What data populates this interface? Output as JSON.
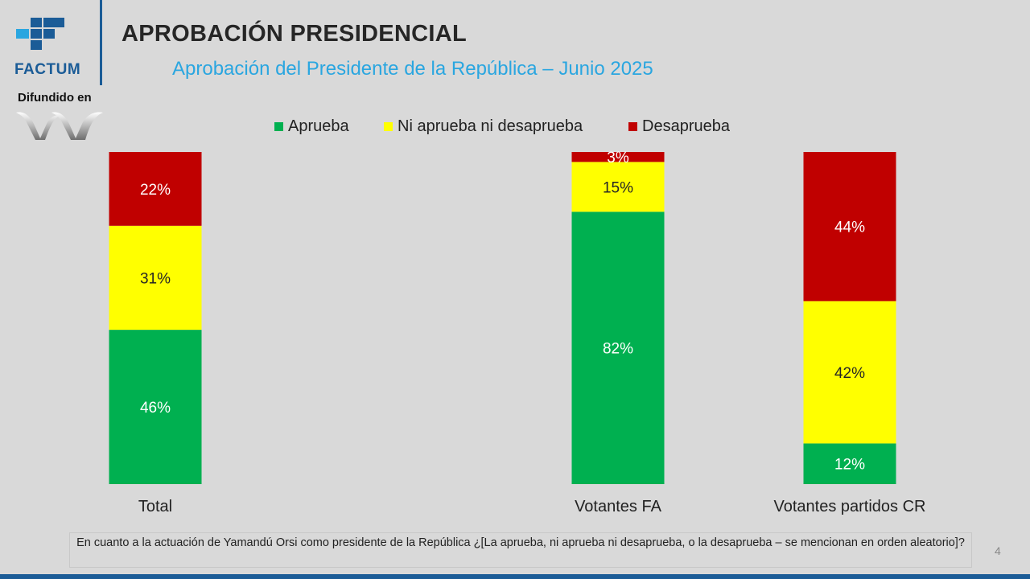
{
  "brand": {
    "name": "FACTUM",
    "difundido": "Difundido en",
    "brand_color": "#1b5c97"
  },
  "header": {
    "title": "APROBACIÓN PRESIDENCIAL",
    "subtitle": "Aprobación del Presidente de la República – Junio 2025"
  },
  "chart_data": {
    "type": "bar",
    "stacked": true,
    "categories": [
      "Total",
      "Votantes FA",
      "Votantes partidos CR"
    ],
    "series": [
      {
        "name": "Aprueba",
        "color": "#00b050",
        "values": [
          46,
          82,
          12
        ]
      },
      {
        "name": "Ni aprueba ni desaprueba",
        "color": "#ffff00",
        "values": [
          31,
          15,
          42
        ]
      },
      {
        "name": "Desaprueba",
        "color": "#c00000",
        "values": [
          22,
          3,
          44
        ]
      }
    ],
    "labels": [
      [
        "46%",
        "82%",
        "12%"
      ],
      [
        "31%",
        "15%",
        "42%"
      ],
      [
        "22%",
        "3%",
        "44%"
      ]
    ],
    "ylim": [
      0,
      100
    ],
    "grid": false,
    "legend_position": "top-center"
  },
  "footer": {
    "question": "En cuanto a la actuación de Yamandú Orsi como presidente de la República ¿[La aprueba, ni aprueba ni desaprueba, o la desaprueba – se mencionan en orden aleatorio]?",
    "page": "4"
  }
}
